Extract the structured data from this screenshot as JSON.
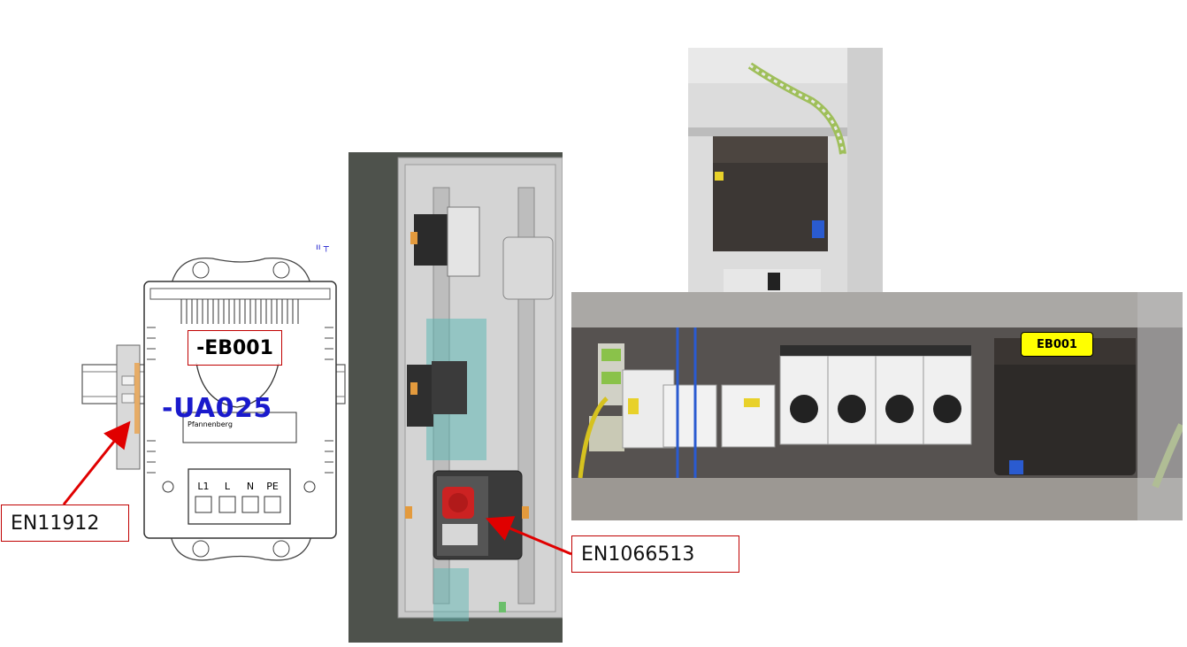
{
  "drawing": {
    "device_tag": "-EB001",
    "assembly_tag": "-UA025",
    "brand_text": "Pfannenberg",
    "terminals": [
      "L1",
      "L",
      "N",
      "PE"
    ],
    "small_marks": "ıı  ┬"
  },
  "callouts": {
    "left": "EN11912",
    "center": "EN1066513"
  },
  "photo": {
    "label": "EB001"
  },
  "colors": {
    "callout_border": "#c00000",
    "arrow": "#e00000",
    "tag_blue": "#1a1acc",
    "label_yellow": "#ffff00"
  }
}
